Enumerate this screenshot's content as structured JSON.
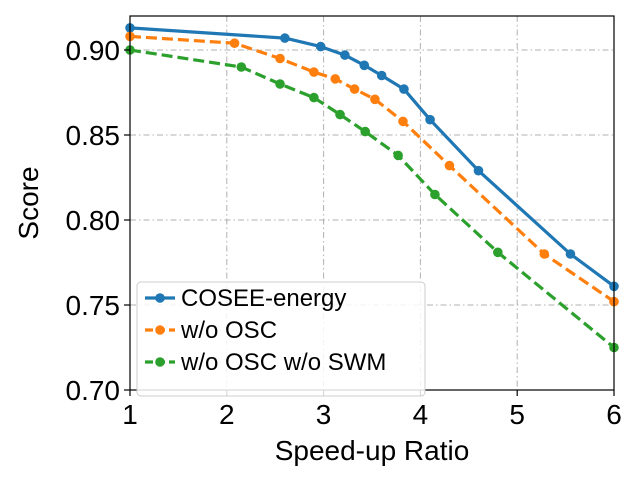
{
  "chart_data": {
    "type": "line",
    "title": "",
    "xlabel": "Speed-up Ratio",
    "ylabel": "Score",
    "xlim": [
      1,
      6
    ],
    "ylim": [
      0.7,
      0.92
    ],
    "xticks": [
      1,
      2,
      3,
      4,
      5,
      6
    ],
    "xtick_labels": [
      "1",
      "2",
      "3",
      "4",
      "5",
      "6"
    ],
    "yticks": [
      0.7,
      0.75,
      0.8,
      0.85,
      0.9
    ],
    "ytick_labels": [
      "0.70",
      "0.75",
      "0.80",
      "0.85",
      "0.90"
    ],
    "grid": true,
    "legend_position": "bottom-left",
    "series": [
      {
        "name": "COSEE-energy",
        "color": "#1f77b4",
        "linestyle": "solid",
        "x": [
          1.0,
          2.6,
          2.97,
          3.22,
          3.42,
          3.6,
          3.83,
          4.1,
          4.6,
          5.55,
          6.0
        ],
        "y": [
          0.913,
          0.907,
          0.902,
          0.897,
          0.891,
          0.885,
          0.877,
          0.859,
          0.829,
          0.78,
          0.761
        ]
      },
      {
        "name": "w/o OSC",
        "color": "#ff7f0e",
        "linestyle": "dashed",
        "x": [
          1.0,
          2.08,
          2.55,
          2.9,
          3.12,
          3.32,
          3.53,
          3.82,
          4.3,
          5.28,
          6.0
        ],
        "y": [
          0.908,
          0.904,
          0.895,
          0.887,
          0.883,
          0.877,
          0.871,
          0.858,
          0.832,
          0.78,
          0.752
        ]
      },
      {
        "name": "w/o OSC w/o SWM",
        "color": "#2ca02c",
        "linestyle": "dashed",
        "x": [
          1.0,
          2.15,
          2.55,
          2.9,
          3.17,
          3.43,
          3.77,
          4.15,
          4.8,
          6.0
        ],
        "y": [
          0.9,
          0.89,
          0.88,
          0.872,
          0.862,
          0.852,
          0.838,
          0.815,
          0.781,
          0.725
        ]
      }
    ]
  }
}
